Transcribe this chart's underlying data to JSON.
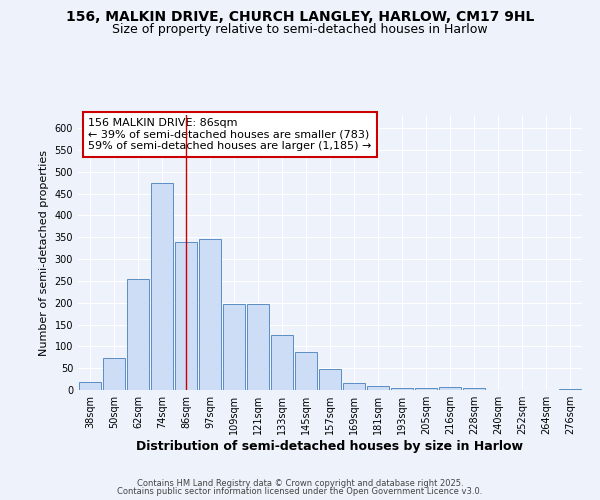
{
  "title1": "156, MALKIN DRIVE, CHURCH LANGLEY, HARLOW, CM17 9HL",
  "title2": "Size of property relative to semi-detached houses in Harlow",
  "xlabel": "Distribution of semi-detached houses by size in Harlow",
  "ylabel": "Number of semi-detached properties",
  "categories": [
    "38sqm",
    "50sqm",
    "62sqm",
    "74sqm",
    "86sqm",
    "97sqm",
    "109sqm",
    "121sqm",
    "133sqm",
    "145sqm",
    "157sqm",
    "169sqm",
    "181sqm",
    "193sqm",
    "205sqm",
    "216sqm",
    "228sqm",
    "240sqm",
    "252sqm",
    "264sqm",
    "276sqm"
  ],
  "values": [
    18,
    73,
    255,
    475,
    340,
    347,
    198,
    198,
    127,
    88,
    47,
    16,
    10,
    5,
    5,
    8,
    5,
    1,
    1,
    1,
    2
  ],
  "bar_color": "#ccddf5",
  "bar_edge_color": "#5b8ec4",
  "vline_x": 4,
  "vline_color": "#cc0000",
  "annotation_title": "156 MALKIN DRIVE: 86sqm",
  "annotation_line1": "← 39% of semi-detached houses are smaller (783)",
  "annotation_line2": "59% of semi-detached houses are larger (1,185) →",
  "annotation_box_color": "#cc0000",
  "ylim": [
    0,
    630
  ],
  "yticks": [
    0,
    50,
    100,
    150,
    200,
    250,
    300,
    350,
    400,
    450,
    500,
    550,
    600
  ],
  "footnote1": "Contains HM Land Registry data © Crown copyright and database right 2025.",
  "footnote2": "Contains public sector information licensed under the Open Government Licence v3.0.",
  "bg_color": "#eef3fb",
  "plot_bg_color": "#eef3fb",
  "grid_color": "#ffffff",
  "title1_fontsize": 10,
  "title2_fontsize": 9,
  "tick_fontsize": 7,
  "ylabel_fontsize": 8,
  "xlabel_fontsize": 9,
  "footnote_fontsize": 6,
  "ann_fontsize": 8
}
